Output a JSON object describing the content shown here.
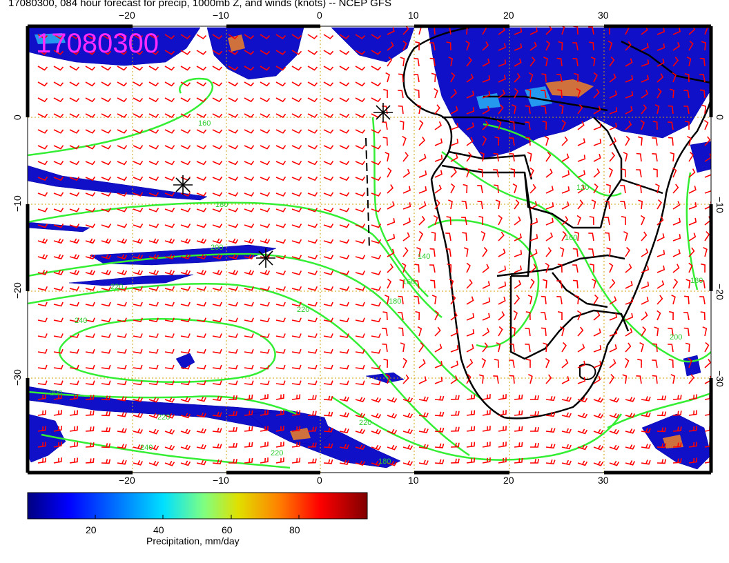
{
  "title": "17080300, 084 hour forecast for precip, 1000mb Z, and winds (knots) -- NCEP GFS",
  "date_stamp": "17080300",
  "colors": {
    "precip_scale": [
      "#000080",
      "#0000ff",
      "#0080ff",
      "#00e0ff",
      "#80ff80",
      "#e0e000",
      "#ff8000",
      "#ff0000",
      "#800000"
    ],
    "height_contour": "#33ee33",
    "wind_barb": "#ff0000",
    "grid": "#d0a000",
    "coast": "#000000",
    "stamp": "#ff2bff"
  },
  "longitude_ticks": [
    "−20",
    "−10",
    "0",
    "10",
    "20",
    "30"
  ],
  "latitude_ticks": [
    "0",
    "−10",
    "−20",
    "−30"
  ],
  "contour_labels": [
    "160",
    "180",
    "200",
    "220",
    "240",
    "120",
    "140",
    "160",
    "180",
    "220",
    "200",
    "160",
    "180",
    "220",
    "240",
    "220",
    "200",
    "180",
    "220"
  ],
  "colorbar": {
    "tick_labels": [
      "20",
      "40",
      "60",
      "80"
    ],
    "label": "Precipitation, mm/day",
    "min": 0,
    "max": 100
  }
}
